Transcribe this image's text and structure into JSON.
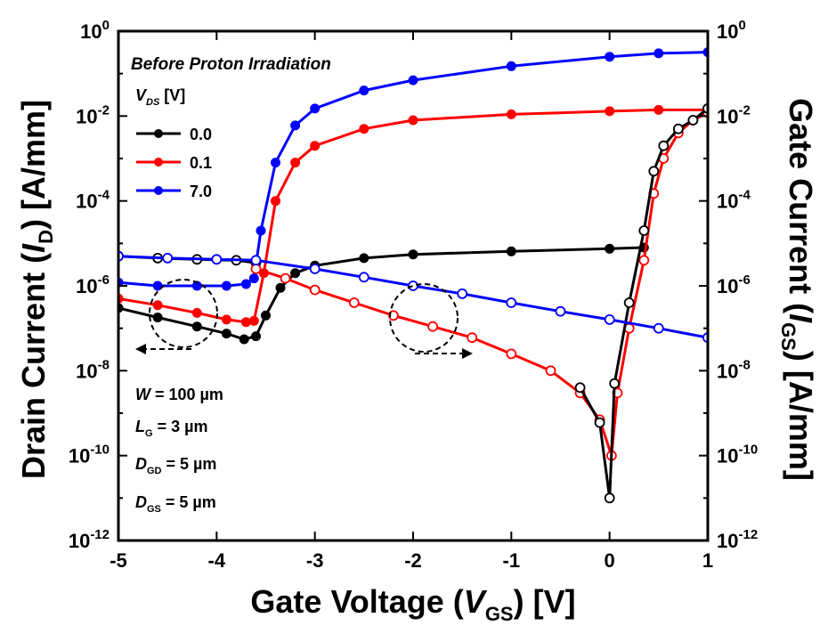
{
  "chart_data": {
    "type": "line",
    "title": "Before Proton Irradiation",
    "xlabel": {
      "prefix": "Gate Voltage (",
      "var": "V",
      "sub": "GS",
      "suffix": ") [V]"
    },
    "ylabel_left": {
      "prefix": "Drain Current (",
      "var": "I",
      "sub": "D",
      "suffix": ") [A/mm]"
    },
    "ylabel_right": {
      "prefix": "Gate Current (",
      "var": "I",
      "sub": "GS",
      "suffix": ") [A/mm]"
    },
    "x_ticks": [
      "-5",
      "-4",
      "-3",
      "-2",
      "-1",
      "0",
      "1"
    ],
    "y_tick_exponents": [
      "0",
      "-2",
      "-4",
      "-6",
      "-8",
      "-10",
      "-12"
    ],
    "xlim": [
      -5,
      1
    ],
    "ylim_log10": [
      -12,
      0
    ],
    "y_scale": "log",
    "legend": {
      "header": {
        "var": "V",
        "sub": "DS",
        "unit": " [V]"
      },
      "placement": "top-left",
      "entries": [
        "0.0",
        "0.1",
        "7.0"
      ]
    },
    "annotations": [
      {
        "var": "W",
        "sub": "",
        "text": " = 100 µm"
      },
      {
        "var": "L",
        "sub": "G",
        "text": " = 3 µm"
      },
      {
        "var": "D",
        "sub": "GD",
        "text": " = 5 µm"
      },
      {
        "var": "D",
        "sub": "GS",
        "text": " = 5 µm"
      }
    ],
    "series": [
      {
        "name": "0.0",
        "axis": "drain",
        "color": "#000000",
        "marker": "filled",
        "x": [
          -5.0,
          -4.6,
          -4.2,
          -3.9,
          -3.72,
          -3.6,
          -3.5,
          -3.35,
          -3.2,
          -3.0,
          -2.5,
          -2.0,
          -1.0,
          0.0,
          0.35
        ],
        "y": [
          3e-07,
          1.8e-07,
          1.1e-07,
          7.5e-08,
          5.5e-08,
          6.5e-08,
          2e-07,
          9e-07,
          2e-06,
          3e-06,
          4.5e-06,
          5.5e-06,
          6.5e-06,
          7.5e-06,
          8e-06
        ]
      },
      {
        "name": "0.1",
        "axis": "drain",
        "color": "#ff0000",
        "marker": "filled",
        "x": [
          -5.0,
          -4.6,
          -4.2,
          -3.9,
          -3.7,
          -3.62,
          -3.52,
          -3.4,
          -3.2,
          -3.0,
          -2.5,
          -2.0,
          -1.0,
          0.0,
          0.5,
          1.0
        ],
        "y": [
          5e-07,
          3.5e-07,
          2.3e-07,
          1.6e-07,
          1.4e-07,
          1.5e-07,
          2e-06,
          0.0001,
          0.0008,
          0.002,
          0.005,
          0.008,
          0.011,
          0.013,
          0.014,
          0.014
        ]
      },
      {
        "name": "7.0",
        "axis": "drain",
        "color": "#0000ff",
        "marker": "filled",
        "x": [
          -5.0,
          -4.6,
          -4.2,
          -3.9,
          -3.7,
          -3.62,
          -3.55,
          -3.4,
          -3.2,
          -3.0,
          -2.5,
          -2.0,
          -1.0,
          0.0,
          0.5,
          1.0
        ],
        "y": [
          1.2e-06,
          1e-06,
          1e-06,
          1e-06,
          1.1e-06,
          1.5e-06,
          2e-05,
          0.0008,
          0.006,
          0.015,
          0.04,
          0.07,
          0.15,
          0.25,
          0.3,
          0.32
        ]
      },
      {
        "name": "0.0",
        "axis": "gate",
        "color": "#000000",
        "marker": "open",
        "x": [
          -5.0,
          -4.6,
          -4.2,
          -3.8,
          -3.6
        ],
        "y": [
          5e-06,
          4.5e-06,
          4.2e-06,
          4e-06,
          3.5e-06
        ]
      },
      {
        "name": "0.1",
        "axis": "gate",
        "color": "#ff0000",
        "marker": "open",
        "x": [
          -3.6,
          -3.3,
          -3.0,
          -2.6,
          -2.2,
          -1.8,
          -1.4,
          -1.0,
          -0.6,
          -0.3,
          -0.1,
          0.02,
          0.08,
          0.2,
          0.35,
          0.45,
          0.55,
          0.7,
          0.85,
          1.0
        ],
        "y": [
          2.5e-06,
          1.5e-06,
          8e-07,
          4e-07,
          2e-07,
          1.1e-07,
          6e-08,
          2.5e-08,
          1e-08,
          3e-09,
          7e-10,
          1e-10,
          3e-09,
          1e-07,
          4e-06,
          0.00015,
          0.001,
          0.004,
          0.008,
          0.012
        ]
      },
      {
        "name": "0.0",
        "axis": "gate",
        "color": "#000000",
        "marker": "open",
        "x": [
          -0.3,
          -0.1,
          0.0,
          0.05,
          0.2,
          0.35,
          0.45,
          0.55,
          0.7,
          0.85,
          1.0
        ],
        "y": [
          4e-09,
          6e-10,
          1e-11,
          5e-09,
          4e-07,
          2e-05,
          0.0005,
          0.002,
          0.005,
          0.008,
          0.015
        ]
      },
      {
        "name": "7.0",
        "axis": "gate",
        "color": "#0000ff",
        "marker": "open",
        "x": [
          -5.0,
          -4.5,
          -4.0,
          -3.6,
          -3.0,
          -2.5,
          -2.0,
          -1.5,
          -1.0,
          -0.5,
          0.0,
          0.5,
          1.0
        ],
        "y": [
          5e-06,
          4.5e-06,
          4.2e-06,
          4e-06,
          2.5e-06,
          1.6e-06,
          1e-06,
          6.5e-07,
          4e-07,
          2.5e-07,
          1.6e-07,
          1e-07,
          6e-08
        ]
      }
    ]
  }
}
